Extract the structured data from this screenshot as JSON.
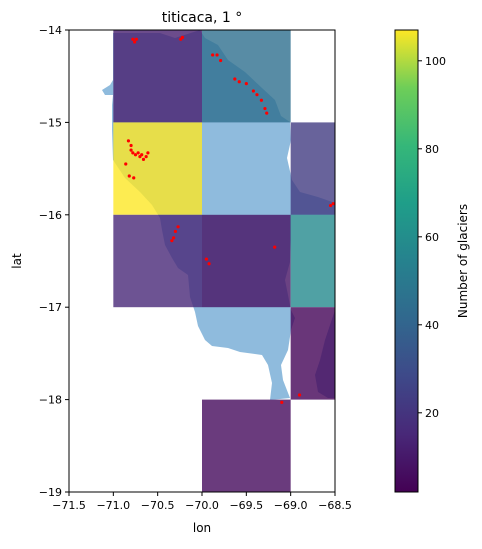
{
  "chart_data": {
    "type": "heatmap",
    "title": "titicaca, 1 °",
    "xlabel": "lon",
    "ylabel": "lat",
    "xlim": [
      -71.5,
      -68.5
    ],
    "ylim": [
      -19,
      -14
    ],
    "xticks": [
      -71.5,
      -71.0,
      -70.5,
      -70.0,
      -69.5,
      -69.0,
      -68.5
    ],
    "xtick_labels": [
      "−71.5",
      "−71.0",
      "−70.5",
      "−70.0",
      "−69.5",
      "−69.0",
      "−68.5"
    ],
    "yticks": [
      -19,
      -18,
      -17,
      -16,
      -15,
      -14
    ],
    "ytick_labels": [
      "−19",
      "−18",
      "−17",
      "−16",
      "−15",
      "−14"
    ],
    "grid": false,
    "colormap": "viridis",
    "colorbar": {
      "label": "Number of glaciers",
      "min": 2,
      "max": 107,
      "ticks": [
        20,
        40,
        60,
        80,
        100
      ],
      "tick_labels": [
        "20",
        "40",
        "60",
        "80",
        "100"
      ]
    },
    "cells": [
      {
        "x": [
          -71.0,
          -70.0
        ],
        "y": [
          -15,
          -14
        ],
        "value": 12
      },
      {
        "x": [
          -70.0,
          -69.0
        ],
        "y": [
          -15,
          -14
        ],
        "value": 45
      },
      {
        "x": [
          -71.0,
          -70.0
        ],
        "y": [
          -16,
          -15
        ],
        "value": 107
      },
      {
        "x": [
          -69.0,
          -68.5
        ],
        "y": [
          -16,
          -15
        ],
        "value": 23
      },
      {
        "x": [
          -71.0,
          -70.0
        ],
        "y": [
          -17,
          -16
        ],
        "value": 15
      },
      {
        "x": [
          -70.0,
          -69.0
        ],
        "y": [
          -17,
          -16
        ],
        "value": 8
      },
      {
        "x": [
          -69.0,
          -68.5
        ],
        "y": [
          -17,
          -16
        ],
        "value": 58
      },
      {
        "x": [
          -69.0,
          -68.5
        ],
        "y": [
          -18,
          -17
        ],
        "value": 3
      },
      {
        "x": [
          -70.0,
          -69.0
        ],
        "y": [
          -19,
          -18
        ],
        "value": 5
      }
    ],
    "basin_color": "#8fbbdd",
    "glacier_color": "#ff0000",
    "glaciers": [
      [
        -70.78,
        -14.1
      ],
      [
        -70.74,
        -14.1
      ],
      [
        -70.76,
        -14.13
      ],
      [
        -70.22,
        -14.08
      ],
      [
        -70.24,
        -14.1
      ],
      [
        -69.88,
        -14.27
      ],
      [
        -69.83,
        -14.27
      ],
      [
        -69.79,
        -14.33
      ],
      [
        -69.63,
        -14.53
      ],
      [
        -69.58,
        -14.56
      ],
      [
        -69.5,
        -14.58
      ],
      [
        -69.42,
        -14.66
      ],
      [
        -69.38,
        -14.7
      ],
      [
        -69.33,
        -14.76
      ],
      [
        -69.29,
        -14.85
      ],
      [
        -69.27,
        -14.9
      ],
      [
        -70.83,
        -15.2
      ],
      [
        -70.8,
        -15.3
      ],
      [
        -70.78,
        -15.33
      ],
      [
        -70.75,
        -15.35
      ],
      [
        -70.72,
        -15.33
      ],
      [
        -70.7,
        -15.37
      ],
      [
        -70.68,
        -15.35
      ],
      [
        -70.66,
        -15.4
      ],
      [
        -70.63,
        -15.37
      ],
      [
        -70.61,
        -15.33
      ],
      [
        -70.8,
        -15.25
      ],
      [
        -70.86,
        -15.45
      ],
      [
        -70.82,
        -15.58
      ],
      [
        -70.77,
        -15.6
      ],
      [
        -70.27,
        -16.13
      ],
      [
        -70.3,
        -16.18
      ],
      [
        -70.32,
        -16.25
      ],
      [
        -70.34,
        -16.28
      ],
      [
        -69.95,
        -16.48
      ],
      [
        -69.92,
        -16.53
      ],
      [
        -69.18,
        -16.35
      ],
      [
        -68.55,
        -15.9
      ],
      [
        -68.52,
        -15.88
      ],
      [
        -68.9,
        -17.95
      ],
      [
        -69.1,
        -18.03
      ]
    ]
  }
}
